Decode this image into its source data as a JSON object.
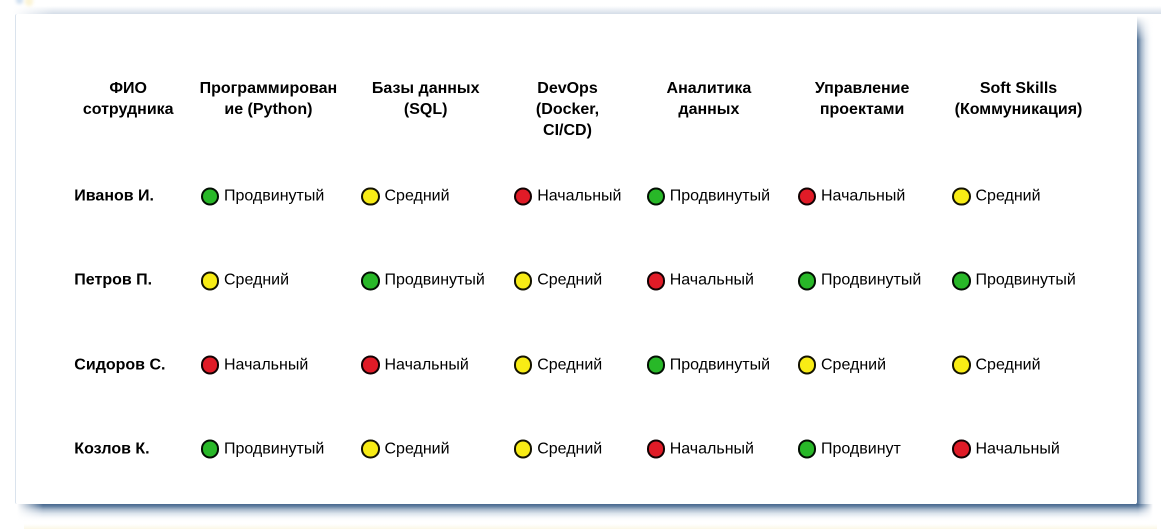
{
  "page": {
    "background_color": "#ffffff",
    "card_shadow_color": "#486c94",
    "description_labels": []
  },
  "status_colors": {
    "green": "#28b828",
    "yellow": "#f8ec15",
    "red": "#e01b27"
  },
  "chart_data": {
    "type": "table",
    "title": "",
    "columns": [
      "ФИО\nсотрудника",
      "Программирован\nие (Python)",
      "Базы данных\n(SQL)",
      "DevOps\n(Docker,\nCI/CD)",
      "Аналитика\nданных",
      "Управление\nпроектами",
      "Soft Skills\n(Коммуникация)"
    ],
    "rows": [
      {
        "name": "Иванов И.",
        "skills": [
          {
            "level": "Продвинутый",
            "status": "green"
          },
          {
            "level": "Средний",
            "status": "yellow"
          },
          {
            "level": "Начальный",
            "status": "red"
          },
          {
            "level": "Продвинутый",
            "status": "green"
          },
          {
            "level": "Начальный",
            "status": "red"
          },
          {
            "level": "Средний",
            "status": "yellow"
          }
        ]
      },
      {
        "name": "Петров П.",
        "skills": [
          {
            "level": "Средний",
            "status": "yellow"
          },
          {
            "level": "Продвинутый",
            "status": "green"
          },
          {
            "level": "Средний",
            "status": "yellow"
          },
          {
            "level": "Начальный",
            "status": "red"
          },
          {
            "level": "Продвинутый",
            "status": "green"
          },
          {
            "level": "Продвинутый",
            "status": "green"
          }
        ]
      },
      {
        "name": "Сидоров С.",
        "skills": [
          {
            "level": "Начальный",
            "status": "red"
          },
          {
            "level": "Начальный",
            "status": "red"
          },
          {
            "level": "Средний",
            "status": "yellow"
          },
          {
            "level": "Продвинутый",
            "status": "green"
          },
          {
            "level": "Средний",
            "status": "yellow"
          },
          {
            "level": "Средний",
            "status": "yellow"
          }
        ]
      },
      {
        "name": "Козлов К.",
        "skills": [
          {
            "level": "Продвинутый",
            "status": "green"
          },
          {
            "level": "Средний",
            "status": "yellow"
          },
          {
            "level": "Средний",
            "status": "yellow"
          },
          {
            "level": "Начальный",
            "status": "red"
          },
          {
            "level": "Продвинут",
            "status": "green"
          },
          {
            "level": "Начальный",
            "status": "red"
          }
        ]
      }
    ]
  }
}
